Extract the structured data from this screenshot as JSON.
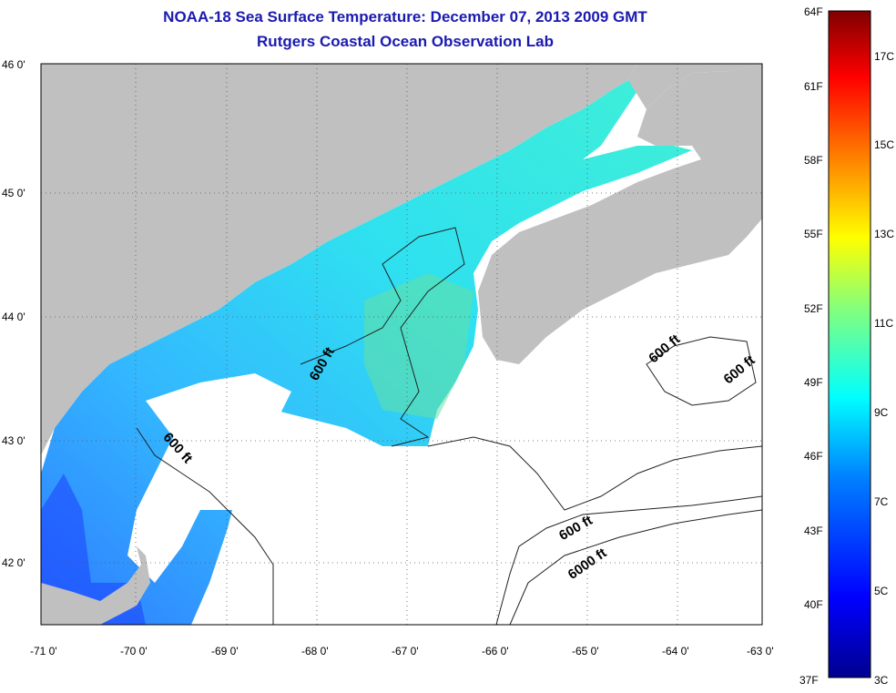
{
  "title": "NOAA-18 Sea Surface Temperature:  December 07, 2013 2009 GMT",
  "subtitle": "Rutgers Coastal Ocean Observation Lab",
  "lat_labels": [
    "46 0'",
    "45 0'",
    "44 0'",
    "43 0'",
    "42 0'"
  ],
  "lon_labels": [
    "-71 0'",
    "-70 0'",
    "-69 0'",
    "-68 0'",
    "-67 0'",
    "-66 0'",
    "-65 0'",
    "-64 0'",
    "-63 0'"
  ],
  "contour_labels": [
    "600 ft",
    "600 ft",
    "600 ft",
    "600 ft",
    "600 ft",
    "6000 ft"
  ],
  "colorbar": {
    "f_labels": [
      "64F",
      "61F",
      "58F",
      "55F",
      "52F",
      "49F",
      "46F",
      "43F",
      "40F",
      "37F"
    ],
    "c_labels": [
      "17C",
      "15C",
      "13C",
      "11C",
      "9C",
      "7C",
      "5C",
      "3C"
    ],
    "stops": [
      "#00008f",
      "#0000ff",
      "#0080ff",
      "#00ffff",
      "#80ff80",
      "#ffff00",
      "#ff8000",
      "#ff0000",
      "#800000"
    ]
  },
  "colors": {
    "land": "#c0c0c0",
    "no_data": "#ffffff",
    "title": "#1a1ab0"
  }
}
